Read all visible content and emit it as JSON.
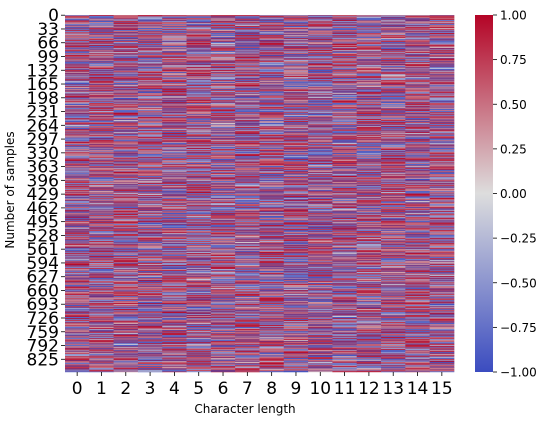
{
  "chart_data": {
    "type": "heatmap",
    "title": "",
    "xlabel": "Character length",
    "ylabel": "Number of samples",
    "x_tick_labels": [
      "0",
      "1",
      "2",
      "3",
      "4",
      "5",
      "6",
      "7",
      "8",
      "9",
      "10",
      "11",
      "12",
      "13",
      "14",
      "15"
    ],
    "y_tick_labels": [
      "0",
      "33",
      "66",
      "99",
      "132",
      "165",
      "198",
      "231",
      "264",
      "297",
      "330",
      "363",
      "396",
      "429",
      "462",
      "495",
      "528",
      "561",
      "594",
      "627",
      "660",
      "693",
      "726",
      "759",
      "792",
      "825"
    ],
    "n_rows": 856,
    "n_cols": 16,
    "value_range": [
      -1.0,
      1.0
    ],
    "colormap": "coolwarm",
    "colormap_stops": [
      "#3b4cc0",
      "#dddddd",
      "#b40426"
    ],
    "colorbar": {
      "ticks": [
        1.0,
        0.75,
        0.5,
        0.25,
        0.0,
        -0.25,
        -0.5,
        -0.75,
        -1.0
      ],
      "tick_labels": [
        "1.00",
        "0.75",
        "0.50",
        "0.25",
        "0.00",
        "−0.25",
        "−0.50",
        "−0.75",
        "−1.00"
      ]
    }
  }
}
